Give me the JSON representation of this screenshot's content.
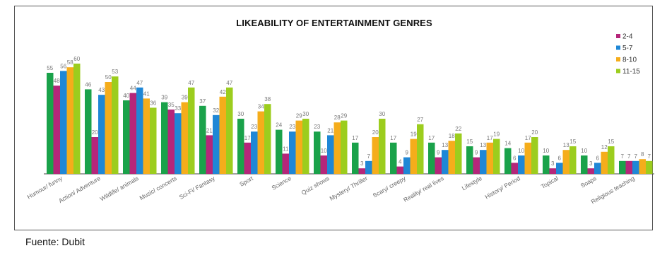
{
  "source": "Fuente: Dubit",
  "chart_data": {
    "type": "bar",
    "title": "LIKEABILITY OF ENTERTAINMENT GENRES",
    "xlabel": "",
    "ylabel": "",
    "ylim": [
      0,
      65
    ],
    "grid": false,
    "legend_position": "top-right",
    "categories": [
      "Humour/ funny",
      "Action/ Adventure",
      "Wildlife/ animals",
      "Music/ concerts",
      "Sci-Fi/ Fantasy",
      "Sport",
      "Science",
      "Quiz shows",
      "Mystery/ Thriller",
      "Scary/ creepy",
      "Reality/ real lives",
      "Lifestyle",
      "History/ Period",
      "Topical",
      "Soaps",
      "Religious teaching"
    ],
    "series": [
      {
        "name": "2-4",
        "color": "#b5267a",
        "values": [
          48,
          20,
          44,
          35,
          21,
          17,
          11,
          10,
          3,
          4,
          9,
          9,
          6,
          3,
          3,
          7
        ]
      },
      {
        "name": "5-7",
        "color": "#1f87d6",
        "values": [
          56,
          43,
          47,
          33,
          32,
          23,
          23,
          21,
          7,
          9,
          13,
          13,
          10,
          6,
          6,
          7
        ]
      },
      {
        "name": "8-10",
        "color": "#f5ad1b",
        "values": [
          58,
          50,
          41,
          39,
          42,
          34,
          29,
          28,
          20,
          19,
          18,
          17,
          17,
          13,
          12,
          8
        ]
      },
      {
        "name": "11-15",
        "color": "#9ccd1e",
        "values": [
          60,
          53,
          36,
          47,
          47,
          38,
          30,
          29,
          30,
          27,
          22,
          19,
          20,
          15,
          15,
          7
        ]
      }
    ],
    "extra_bars": {
      "color": "#1aa24a",
      "values": [
        55,
        46,
        40,
        39,
        37,
        30,
        24,
        23,
        17,
        17,
        17,
        15,
        14,
        10,
        10,
        7
      ]
    },
    "extra_labels": {
      "values": [
        55,
        46,
        40,
        39,
        37,
        30,
        24,
        23,
        17,
        17,
        17,
        15,
        14,
        10,
        10,
        7
      ]
    }
  }
}
